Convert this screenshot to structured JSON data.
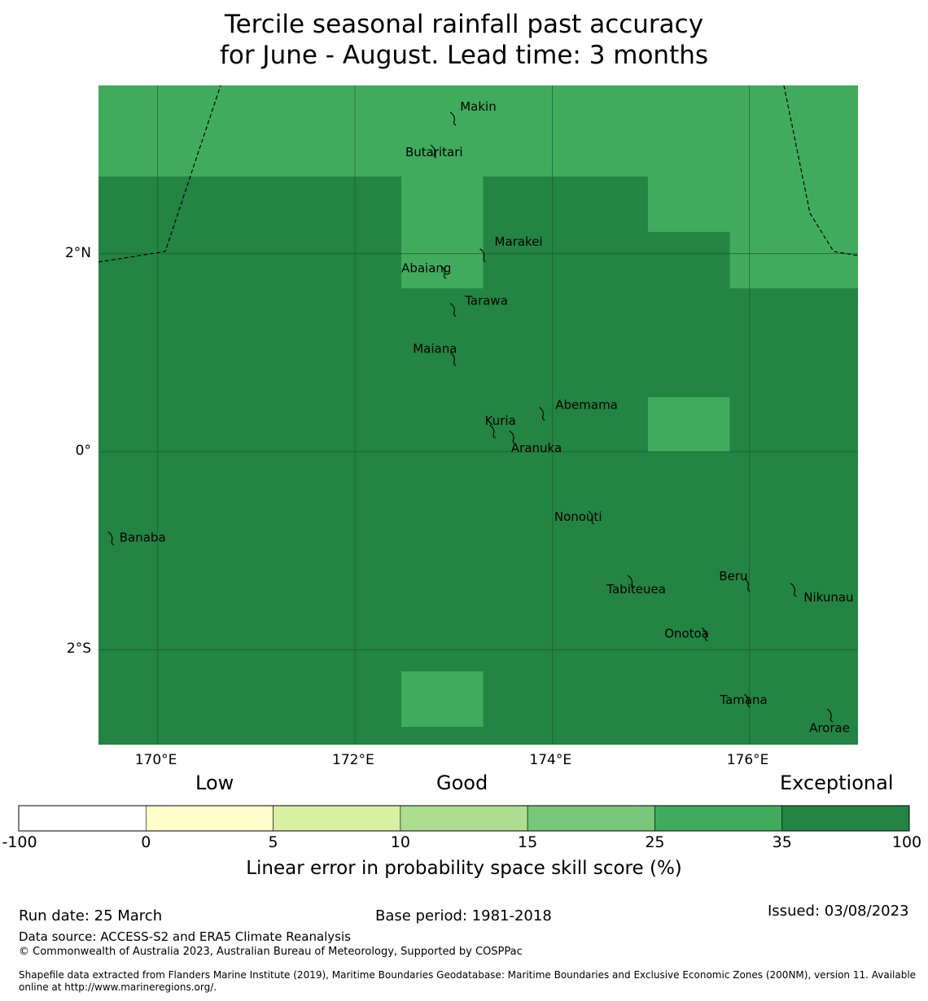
{
  "title": {
    "line1": "Tercile seasonal rainfall past accuracy",
    "line2": "for June - August. Lead time: 3 months"
  },
  "map": {
    "lon_range": [
      169.4,
      177.1
    ],
    "lat_range": [
      -2.96,
      3.7
    ],
    "x_ticks": [
      {
        "lon": 170,
        "label": "170°E"
      },
      {
        "lon": 172,
        "label": "172°E"
      },
      {
        "lon": 174,
        "label": "174°E"
      },
      {
        "lon": 176,
        "label": "176°E"
      }
    ],
    "y_ticks": [
      {
        "lat": 2,
        "label": "2°N"
      },
      {
        "lat": 0,
        "label": "0°"
      },
      {
        "lat": -2,
        "label": "2°S"
      }
    ],
    "base_category": "35 to 100",
    "cells_25_35": [
      {
        "lon": [
          169.4,
          177.1
        ],
        "lat": [
          2.78,
          3.7
        ]
      },
      {
        "lon": [
          172.47,
          173.3
        ],
        "lat": [
          1.65,
          3.33
        ]
      },
      {
        "lon": [
          174.13,
          174.97
        ],
        "lat": [
          2.78,
          3.33
        ]
      },
      {
        "lon": [
          174.97,
          175.8
        ],
        "lat": [
          2.22,
          3.33
        ]
      },
      {
        "lon": [
          175.8,
          177.1
        ],
        "lat": [
          1.65,
          3.33
        ]
      },
      {
        "lon": [
          174.97,
          175.8
        ],
        "lat": [
          0.0,
          0.55
        ]
      },
      {
        "lon": [
          172.47,
          173.3
        ],
        "lat": [
          -2.78,
          -2.22
        ]
      }
    ],
    "islands": [
      {
        "name": "Makin",
        "lon": 173.0,
        "lat": 3.38
      },
      {
        "name": "Butaritari",
        "lon": 172.8,
        "lat": 3.05
      },
      {
        "name": "Marakei",
        "lon": 173.3,
        "lat": 2.0
      },
      {
        "name": "Abaiang",
        "lon": 172.9,
        "lat": 1.83
      },
      {
        "name": "Tarawa",
        "lon": 173.0,
        "lat": 1.45
      },
      {
        "name": "Maiana",
        "lon": 173.0,
        "lat": 0.95
      },
      {
        "name": "Abemama",
        "lon": 173.9,
        "lat": 0.4
      },
      {
        "name": "Kuria",
        "lon": 173.4,
        "lat": 0.22
      },
      {
        "name": "Aranuka",
        "lon": 173.6,
        "lat": 0.16
      },
      {
        "name": "Nonouti",
        "lon": 174.4,
        "lat": -0.65
      },
      {
        "name": "Banaba",
        "lon": 169.53,
        "lat": -0.86
      },
      {
        "name": "Tabiteuea",
        "lon": 174.8,
        "lat": -1.3
      },
      {
        "name": "Beru",
        "lon": 175.98,
        "lat": -1.33
      },
      {
        "name": "Nikunau",
        "lon": 176.45,
        "lat": -1.38
      },
      {
        "name": "Onotoa",
        "lon": 175.55,
        "lat": -1.83
      },
      {
        "name": "Tamana",
        "lon": 175.98,
        "lat": -2.5
      },
      {
        "name": "Arorae",
        "lon": 176.82,
        "lat": -2.65
      }
    ]
  },
  "legend": {
    "categories": [
      "Low",
      "Good",
      "Exceptional"
    ],
    "bins": [
      {
        "from": -100,
        "to": 0,
        "color": "#ffffff"
      },
      {
        "from": 0,
        "to": 5,
        "color": "#ffffcc"
      },
      {
        "from": 5,
        "to": 10,
        "color": "#d9f0a3"
      },
      {
        "from": 10,
        "to": 15,
        "color": "#addd8e"
      },
      {
        "from": 15,
        "to": 25,
        "color": "#78c679"
      },
      {
        "from": 25,
        "to": 35,
        "color": "#41ab5d"
      },
      {
        "from": 35,
        "to": 100,
        "color": "#238443"
      }
    ],
    "tick_labels": [
      "-100",
      "0",
      "5",
      "10",
      "15",
      "25",
      "35",
      "100"
    ],
    "title": "Linear error in probability space skill score (%)"
  },
  "footer": {
    "run_date": "Run date: 25 March",
    "base_period": "Base period: 1981-2018",
    "issued": "Issued: 03/08/2023",
    "data_source": "Data source: ACCESS-S2 and ERA5 Climate Reanalysis",
    "copyright": "© Commonwealth of Australia 2023, Australian Bureau of Meteorology, Supported by COSPPac",
    "shapefile_line1": "Shapefile data extracted from Flanders Marine Institute (2019), Maritime Boundaries Geodatabase: Maritime Boundaries and Exclusive Economic Zones (200NM), version 11. Available",
    "shapefile_line2": "online at http://www.marineregions.org/."
  }
}
